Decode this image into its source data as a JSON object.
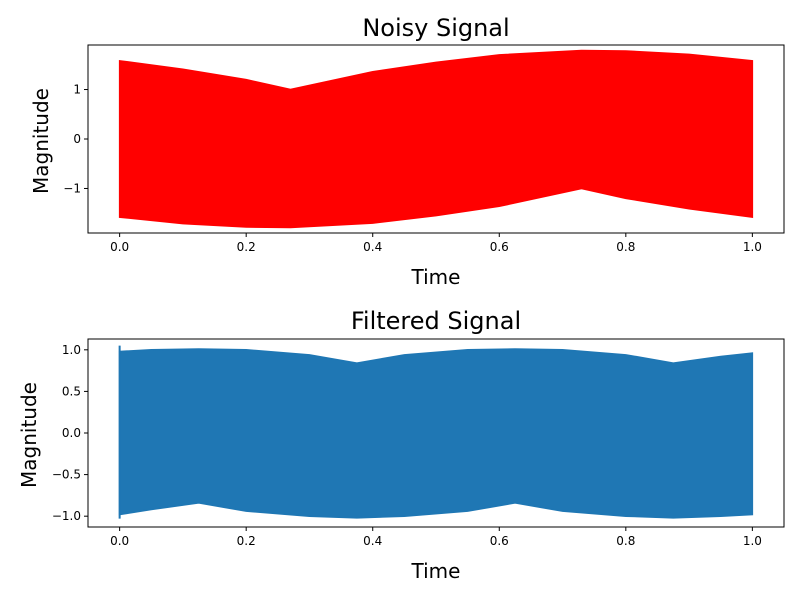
{
  "chart_data": [
    {
      "type": "area",
      "title": "Noisy Signal",
      "xlabel": "Time",
      "ylabel": "Magnitude",
      "color": "#ff0000",
      "xlim": [
        -0.05,
        1.05
      ],
      "ylim": [
        -1.9,
        1.9
      ],
      "xticks": [
        0.0,
        0.2,
        0.4,
        0.6,
        0.8,
        1.0
      ],
      "xtick_labels": [
        "0.0",
        "0.2",
        "0.4",
        "0.6",
        "0.8",
        "1.0"
      ],
      "yticks": [
        1,
        0,
        -1
      ],
      "ytick_labels": [
        "1",
        "0",
        "−1"
      ],
      "series": [
        {
          "x": [
            0.0,
            0.1,
            0.2,
            0.27,
            0.4,
            0.5,
            0.6,
            0.73,
            0.8,
            0.9,
            1.0
          ],
          "upper": [
            1.58,
            1.41,
            1.2,
            1.0,
            1.36,
            1.55,
            1.7,
            1.79,
            1.78,
            1.71,
            1.58
          ],
          "lower": [
            -1.58,
            -1.71,
            -1.78,
            -1.79,
            -1.7,
            -1.55,
            -1.36,
            -1.0,
            -1.2,
            -1.41,
            -1.58
          ]
        }
      ],
      "grid": false
    },
    {
      "type": "area",
      "title": "Filtered Signal",
      "xlabel": "Time",
      "ylabel": "Magnitude",
      "color": "#1f77b4",
      "xlim": [
        -0.05,
        1.05
      ],
      "ylim": [
        -1.13,
        1.13
      ],
      "xticks": [
        0.0,
        0.2,
        0.4,
        0.6,
        0.8,
        1.0
      ],
      "xtick_labels": [
        "0.0",
        "0.2",
        "0.4",
        "0.6",
        "0.8",
        "1.0"
      ],
      "yticks": [
        1.0,
        0.5,
        0.0,
        -0.5,
        -1.0
      ],
      "ytick_labels": [
        "1.0",
        "0.5",
        "0.0",
        "−0.5",
        "−1.0"
      ],
      "series": [
        {
          "x": [
            0.0,
            0.05,
            0.125,
            0.2,
            0.3,
            0.375,
            0.45,
            0.55,
            0.625,
            0.7,
            0.8,
            0.875,
            0.95,
            1.0
          ],
          "upper": [
            0.98,
            1.0,
            1.01,
            1.0,
            0.94,
            0.84,
            0.94,
            1.0,
            1.01,
            1.0,
            0.94,
            0.84,
            0.92,
            0.96
          ],
          "lower": [
            -0.98,
            -0.92,
            -0.84,
            -0.94,
            -1.0,
            -1.02,
            -1.0,
            -0.94,
            -0.84,
            -0.94,
            -1.0,
            -1.02,
            -1.0,
            -0.98
          ]
        }
      ],
      "transient": {
        "x": [
          0.0,
          0.0
        ],
        "y": [
          1.05,
          -1.03
        ]
      },
      "grid": false
    }
  ]
}
